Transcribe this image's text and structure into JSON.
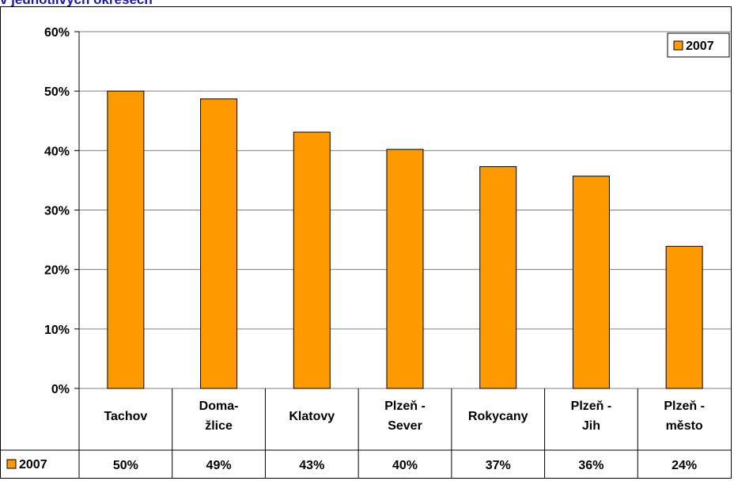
{
  "page": {
    "title": "v jednotlivých okresech"
  },
  "chart_data": {
    "type": "bar",
    "categories": [
      [
        "Tachov"
      ],
      [
        "Doma-",
        "žlice"
      ],
      [
        "Klatovy"
      ],
      [
        "Plzeň -",
        "Sever"
      ],
      [
        "Rokycany"
      ],
      [
        "Plzeň -",
        "Jih"
      ],
      [
        "Plzeň -",
        "město"
      ]
    ],
    "series": [
      {
        "name": "2007",
        "values": [
          50,
          48.7,
          43.1,
          40.2,
          37.3,
          35.7,
          23.9
        ],
        "value_labels": [
          "50%",
          "49%",
          "43%",
          "40%",
          "37%",
          "36%",
          "24%"
        ],
        "color": "#ff9900"
      }
    ],
    "ylim": [
      0,
      60
    ],
    "yticks": [
      "0%",
      "10%",
      "20%",
      "30%",
      "40%",
      "50%",
      "60%"
    ],
    "grid": true,
    "legend": "top-right",
    "data_table": true
  }
}
